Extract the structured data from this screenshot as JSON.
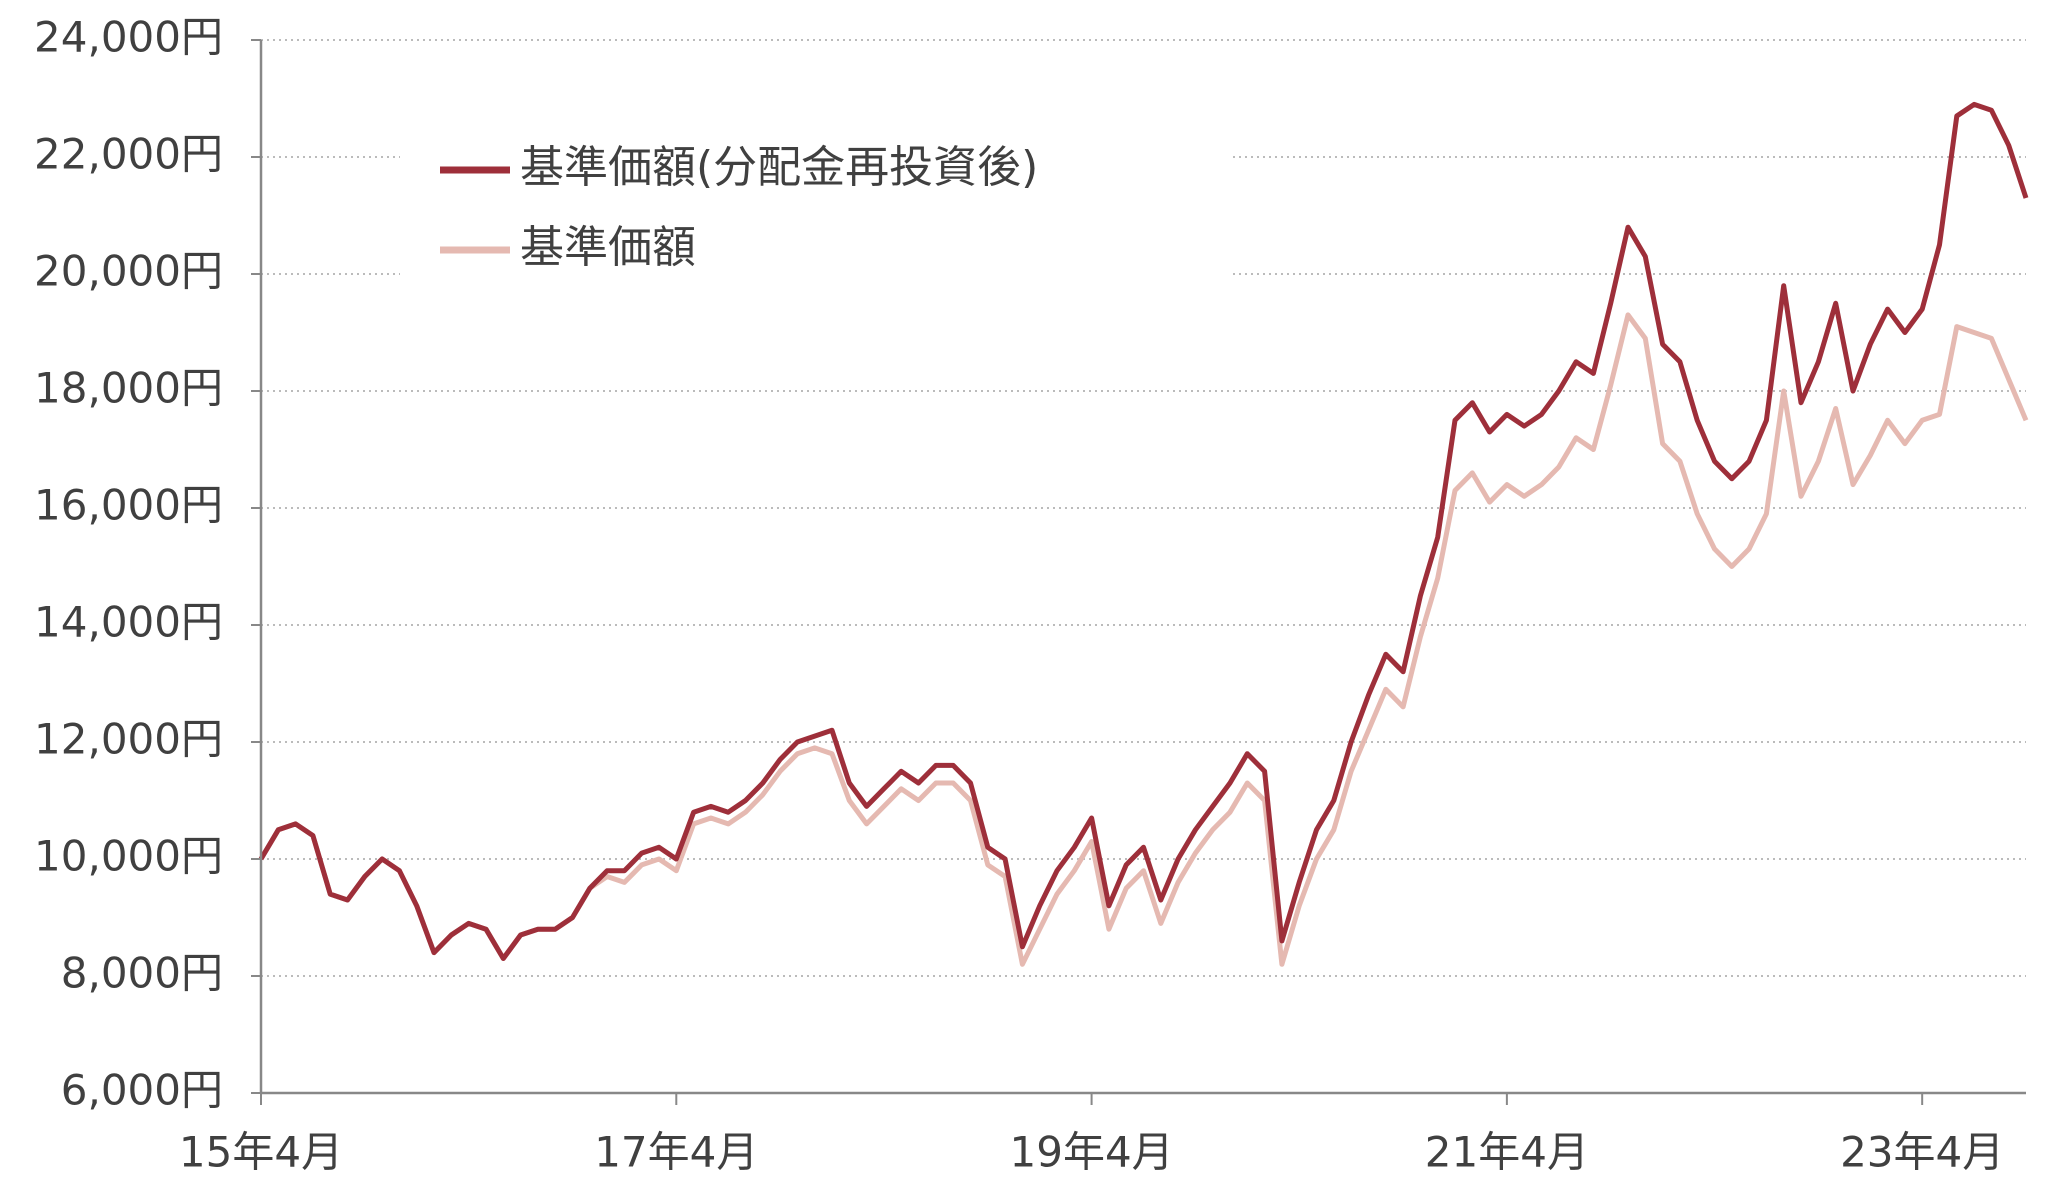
{
  "chart_data": {
    "type": "line",
    "x": [
      "15年4月",
      null,
      null,
      null,
      null,
      null,
      null,
      null,
      null,
      null,
      null,
      null,
      null,
      null,
      null,
      null,
      null,
      null,
      null,
      null,
      null,
      null,
      null,
      null,
      "17年4月",
      null,
      null,
      null,
      null,
      null,
      null,
      null,
      null,
      null,
      null,
      null,
      null,
      null,
      null,
      null,
      null,
      null,
      null,
      null,
      null,
      null,
      null,
      null,
      "19年4月",
      null,
      null,
      null,
      null,
      null,
      null,
      null,
      null,
      null,
      null,
      null,
      null,
      null,
      null,
      null,
      null,
      null,
      null,
      null,
      null,
      null,
      null,
      null,
      "21年4月",
      null,
      null,
      null,
      null,
      null,
      null,
      null,
      null,
      null,
      null,
      null,
      null,
      null,
      null,
      null,
      null,
      null,
      null,
      null,
      null,
      null,
      null,
      null,
      "23年4月",
      null,
      null,
      null,
      null,
      null,
      null
    ],
    "series": [
      {
        "name": "基準価額(分配金再投資後)",
        "color": "#9e2f3a",
        "values": [
          10000,
          10500,
          10600,
          10400,
          9400,
          9300,
          9700,
          10000,
          9800,
          9200,
          8400,
          8700,
          8900,
          8800,
          8300,
          8700,
          8800,
          8800,
          9000,
          9500,
          9800,
          9800,
          10100,
          10200,
          10000,
          10800,
          10900,
          10800,
          11000,
          11300,
          11700,
          12000,
          12100,
          12200,
          11300,
          10900,
          11200,
          11500,
          11300,
          11600,
          11600,
          11300,
          10200,
          10000,
          8500,
          9200,
          9800,
          10200,
          10700,
          9200,
          9900,
          10200,
          9300,
          10000,
          10500,
          10900,
          11300,
          11800,
          11500,
          8600,
          9600,
          10500,
          11000,
          12000,
          12800,
          13500,
          13200,
          14500,
          15500,
          17500,
          17800,
          17300,
          17600,
          17400,
          17600,
          18000,
          18500,
          18300,
          19500,
          20800,
          20300,
          18800,
          18500,
          17500,
          16800,
          16500,
          16800,
          17500,
          19800,
          17800,
          18500,
          19500,
          18000,
          18800,
          19400,
          19000,
          19400,
          20500,
          22700,
          22900,
          22800,
          22200,
          21300
        ]
      },
      {
        "name": "基準価額",
        "color": "#e5b9b1",
        "values": [
          10000,
          10500,
          10600,
          10400,
          9400,
          9300,
          9700,
          10000,
          9800,
          9200,
          8400,
          8700,
          8900,
          8800,
          8300,
          8700,
          8800,
          8800,
          9000,
          9500,
          9700,
          9600,
          9900,
          10000,
          9800,
          10600,
          10700,
          10600,
          10800,
          11100,
          11500,
          11800,
          11900,
          11800,
          11000,
          10600,
          10900,
          11200,
          11000,
          11300,
          11300,
          11000,
          9900,
          9700,
          8200,
          8800,
          9400,
          9800,
          10300,
          8800,
          9500,
          9800,
          8900,
          9600,
          10100,
          10500,
          10800,
          11300,
          11000,
          8200,
          9200,
          10000,
          10500,
          11500,
          12200,
          12900,
          12600,
          13800,
          14800,
          16300,
          16600,
          16100,
          16400,
          16200,
          16400,
          16700,
          17200,
          17000,
          18100,
          19300,
          18900,
          17100,
          16800,
          15900,
          15300,
          15000,
          15300,
          15900,
          18000,
          16200,
          16800,
          17700,
          16400,
          16900,
          17500,
          17100,
          17500,
          17600,
          19100,
          19000,
          18900,
          18200,
          17500
        ]
      }
    ],
    "ylim": [
      6000,
      24000
    ],
    "yticks": [
      {
        "value": 6000,
        "label": "6,000円"
      },
      {
        "value": 8000,
        "label": "8,000円"
      },
      {
        "value": 10000,
        "label": "10,000円"
      },
      {
        "value": 12000,
        "label": "12,000円"
      },
      {
        "value": 14000,
        "label": "14,000円"
      },
      {
        "value": 16000,
        "label": "16,000円"
      },
      {
        "value": 18000,
        "label": "18,000円"
      },
      {
        "value": 20000,
        "label": "20,000円"
      },
      {
        "value": 22000,
        "label": "22,000円"
      },
      {
        "value": 24000,
        "label": "24,000円"
      }
    ],
    "grid": true,
    "legend": "upper-left"
  }
}
